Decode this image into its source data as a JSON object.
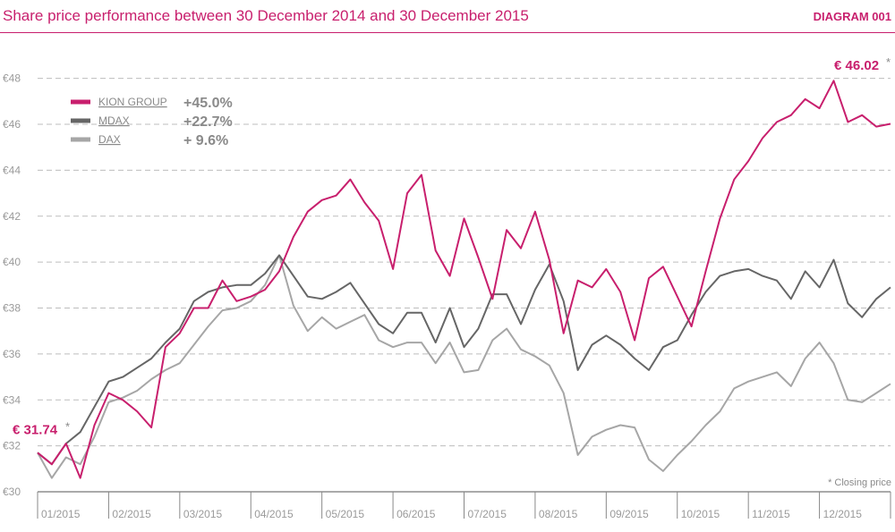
{
  "header": {
    "title": "Share price performance between 30 December 2014 and 30 December 2015",
    "diagram_label": "DIAGRAM 001"
  },
  "footnote": "* Closing price",
  "colors": {
    "kion": "#c81f6d",
    "mdax": "#666666",
    "dax": "#a6a6a6",
    "grid": "#bdbdbd",
    "accent": "#c81f6d"
  },
  "chart_data": {
    "type": "line",
    "title": "Share price performance between 30 December 2014 and 30 December 2015",
    "xlabel": "",
    "ylabel": "",
    "ylim": [
      30,
      49
    ],
    "xlim": [
      0,
      12
    ],
    "grid": true,
    "legend_position": "top-left",
    "y_ticks": [
      30,
      32,
      34,
      36,
      38,
      40,
      42,
      44,
      46,
      48
    ],
    "y_tick_labels": [
      "€30",
      "€32",
      "€34",
      "€36",
      "€38",
      "€40",
      "€42",
      "€44",
      "€46",
      "€48"
    ],
    "month_labels": [
      "01/2015",
      "02/2015",
      "03/2015",
      "04/2015",
      "05/2015",
      "06/2015",
      "07/2015",
      "08/2015",
      "09/2015",
      "10/2015",
      "11/2015",
      "12/2015"
    ],
    "annotations": [
      {
        "text": "€ 31.74",
        "star": "*",
        "x": 0,
        "y": 31.74
      },
      {
        "text": "€ 46.02",
        "star": "*",
        "x": 12,
        "y": 46.02
      }
    ],
    "series": [
      {
        "name": "KION GROUP",
        "change": "+45.0%",
        "color": "#c81f6d",
        "x": [
          0,
          0.2,
          0.4,
          0.6,
          0.8,
          1.0,
          1.2,
          1.4,
          1.6,
          1.8,
          2.0,
          2.2,
          2.4,
          2.6,
          2.8,
          3.0,
          3.2,
          3.4,
          3.6,
          3.8,
          4.0,
          4.2,
          4.4,
          4.6,
          4.8,
          5.0,
          5.2,
          5.4,
          5.6,
          5.8,
          6.0,
          6.2,
          6.4,
          6.6,
          6.8,
          7.0,
          7.2,
          7.4,
          7.6,
          7.8,
          8.0,
          8.2,
          8.4,
          8.6,
          8.8,
          9.0,
          9.2,
          9.4,
          9.6,
          9.8,
          10.0,
          10.2,
          10.4,
          10.6,
          10.8,
          11.0,
          11.2,
          11.4,
          11.6,
          11.8,
          12.0
        ],
        "y": [
          31.7,
          31.2,
          32.1,
          30.6,
          32.9,
          34.3,
          34.0,
          33.5,
          32.8,
          36.3,
          36.9,
          38.0,
          38.0,
          39.2,
          38.3,
          38.5,
          38.8,
          39.6,
          41.1,
          42.2,
          42.7,
          42.9,
          43.6,
          42.6,
          41.8,
          39.7,
          43.0,
          43.8,
          40.5,
          39.4,
          41.9,
          40.2,
          38.4,
          41.4,
          40.6,
          42.2,
          40.1,
          36.9,
          39.2,
          38.9,
          39.7,
          38.7,
          36.6,
          39.3,
          39.8,
          38.5,
          37.2,
          39.6,
          41.9,
          43.6,
          44.4,
          45.4,
          46.1,
          46.4,
          47.1,
          46.7,
          47.9,
          46.1,
          46.4,
          45.9,
          46.02
        ]
      },
      {
        "name": "MDAX",
        "change": "+22.7%",
        "color": "#666666",
        "x": [
          0,
          0.2,
          0.4,
          0.6,
          0.8,
          1.0,
          1.2,
          1.4,
          1.6,
          1.8,
          2.0,
          2.2,
          2.4,
          2.6,
          2.8,
          3.0,
          3.2,
          3.4,
          3.6,
          3.8,
          4.0,
          4.2,
          4.4,
          4.6,
          4.8,
          5.0,
          5.2,
          5.4,
          5.6,
          5.8,
          6.0,
          6.2,
          6.4,
          6.6,
          6.8,
          7.0,
          7.2,
          7.4,
          7.6,
          7.8,
          8.0,
          8.2,
          8.4,
          8.6,
          8.8,
          9.0,
          9.2,
          9.4,
          9.6,
          9.8,
          10.0,
          10.2,
          10.4,
          10.6,
          10.8,
          11.0,
          11.2,
          11.4,
          11.6,
          11.8,
          12.0
        ],
        "y": [
          31.7,
          31.2,
          32.1,
          32.6,
          33.7,
          34.8,
          35.0,
          35.4,
          35.8,
          36.5,
          37.1,
          38.3,
          38.7,
          38.9,
          39.0,
          39.0,
          39.5,
          40.3,
          39.4,
          38.5,
          38.4,
          38.7,
          39.1,
          38.2,
          37.3,
          36.9,
          37.8,
          37.8,
          36.5,
          38.0,
          36.3,
          37.1,
          38.6,
          38.6,
          37.3,
          38.8,
          39.9,
          38.3,
          35.3,
          36.4,
          36.8,
          36.4,
          35.8,
          35.3,
          36.3,
          36.6,
          37.7,
          38.7,
          39.4,
          39.6,
          39.7,
          39.4,
          39.2,
          38.4,
          39.6,
          38.9,
          40.1,
          38.2,
          37.6,
          38.4,
          38.9
        ]
      },
      {
        "name": "DAX",
        "change": "+  9.6%",
        "color": "#a6a6a6",
        "x": [
          0,
          0.2,
          0.4,
          0.6,
          0.8,
          1.0,
          1.2,
          1.4,
          1.6,
          1.8,
          2.0,
          2.2,
          2.4,
          2.6,
          2.8,
          3.0,
          3.2,
          3.4,
          3.6,
          3.8,
          4.0,
          4.2,
          4.4,
          4.6,
          4.8,
          5.0,
          5.2,
          5.4,
          5.6,
          5.8,
          6.0,
          6.2,
          6.4,
          6.6,
          6.8,
          7.0,
          7.2,
          7.4,
          7.6,
          7.8,
          8.0,
          8.2,
          8.4,
          8.6,
          8.8,
          9.0,
          9.2,
          9.4,
          9.6,
          9.8,
          10.0,
          10.2,
          10.4,
          10.6,
          10.8,
          11.0,
          11.2,
          11.4,
          11.6,
          11.8,
          12.0
        ],
        "y": [
          31.7,
          30.6,
          31.5,
          31.2,
          32.4,
          33.9,
          34.1,
          34.4,
          34.9,
          35.3,
          35.6,
          36.4,
          37.2,
          37.9,
          38.0,
          38.3,
          39.0,
          40.3,
          38.1,
          37.0,
          37.6,
          37.1,
          37.4,
          37.7,
          36.6,
          36.3,
          36.5,
          36.5,
          35.6,
          36.5,
          35.2,
          35.3,
          36.6,
          37.1,
          36.2,
          35.9,
          35.5,
          34.3,
          31.6,
          32.4,
          32.7,
          32.9,
          32.8,
          31.4,
          30.9,
          31.6,
          32.2,
          32.9,
          33.5,
          34.5,
          34.8,
          35.0,
          35.2,
          34.6,
          35.8,
          36.5,
          35.6,
          34.0,
          33.9,
          34.3,
          34.7
        ]
      }
    ]
  }
}
